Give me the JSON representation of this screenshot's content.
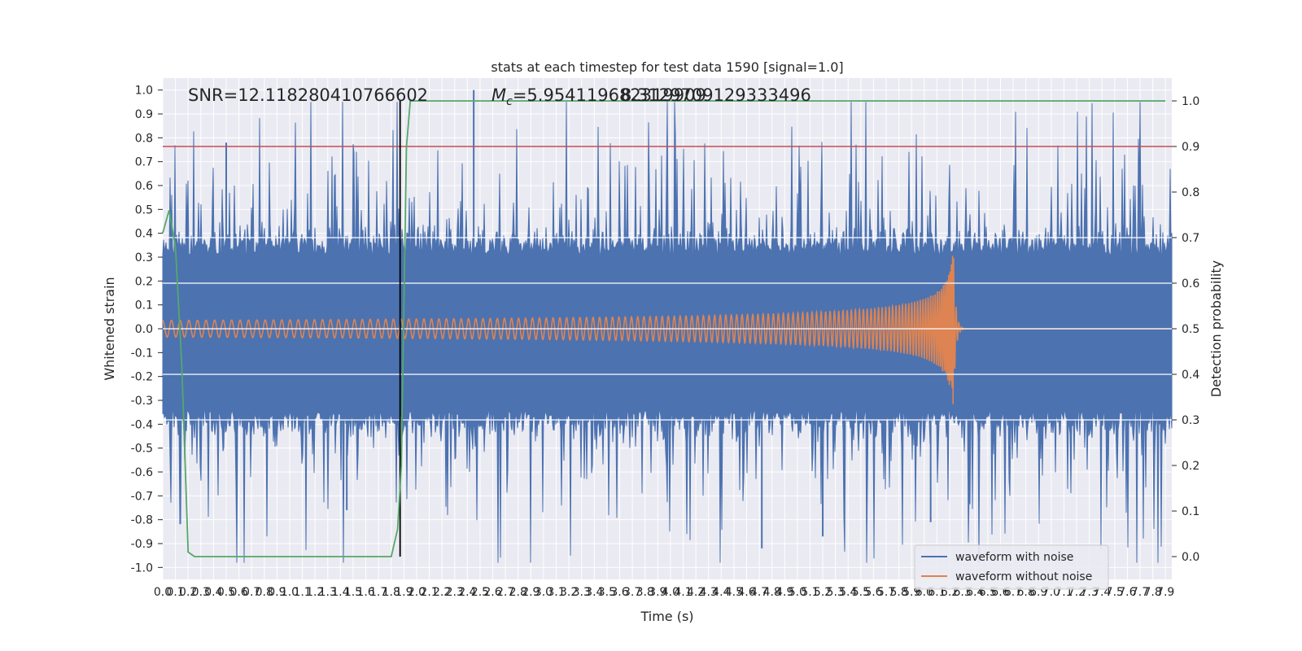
{
  "chart_data": {
    "type": "line",
    "title": "stats at each timestep for test data 1590 [signal=1.0]",
    "xlabel": "Time (s)",
    "ylabel_left": "Whitened strain",
    "ylabel_right": "Detection probability",
    "annotations": {
      "snr": "SNR=12.118280410766602",
      "mc_symbol": "M",
      "mc_subscript": "c",
      "mc_value": "=5.954119682319909",
      "overlap": "8.3129709129333496"
    },
    "xlim": [
      0.0,
      7.95
    ],
    "ylim_left": [
      -1.05,
      1.05
    ],
    "ylim_right": [
      -0.05,
      1.05
    ],
    "x_ticks": [
      "0.0",
      "0.1",
      "0.2",
      "0.3",
      "0.4",
      "0.5",
      "0.6",
      "0.7",
      "0.8",
      "0.9",
      "1.0",
      "1.1",
      "1.2",
      "1.3",
      "1.4",
      "1.5",
      "1.6",
      "1.7",
      "1.8",
      "1.9",
      "2.0",
      "2.1",
      "2.2",
      "2.3",
      "2.4",
      "2.5",
      "2.6",
      "2.7",
      "2.8",
      "2.9",
      "3.0",
      "3.1",
      "3.2",
      "3.3",
      "3.4",
      "3.5",
      "3.6",
      "3.7",
      "3.8",
      "3.9",
      "4.0",
      "4.1",
      "4.2",
      "4.3",
      "4.4",
      "4.5",
      "4.6",
      "4.7",
      "4.8",
      "4.9",
      "5.0",
      "5.1",
      "5.2",
      "5.3",
      "5.4",
      "5.5",
      "5.6",
      "5.7",
      "5.8",
      "5.9",
      "6.0",
      "6.1",
      "6.2",
      "6.3",
      "6.4",
      "6.5",
      "6.6",
      "6.7",
      "6.8",
      "6.9",
      "7.0",
      "7.1",
      "7.2",
      "7.3",
      "7.4",
      "7.5",
      "7.6",
      "7.7",
      "7.8",
      "7.9"
    ],
    "y_ticks_left": [
      "-1.0",
      "-0.9",
      "-0.8",
      "-0.7",
      "-0.6",
      "-0.5",
      "-0.4",
      "-0.3",
      "-0.2",
      "-0.1",
      "0.0",
      "0.1",
      "0.2",
      "0.3",
      "0.4",
      "0.5",
      "0.6",
      "0.7",
      "0.8",
      "0.9",
      "1.0"
    ],
    "y_ticks_right": [
      "0.0",
      "0.1",
      "0.2",
      "0.3",
      "0.4",
      "0.5",
      "0.6",
      "0.7",
      "0.8",
      "0.9",
      "1.0"
    ],
    "grid": true,
    "legend": {
      "placement": "lower-right"
    },
    "series": [
      {
        "name": "waveform with noise",
        "color": "#4c72b0",
        "axis": "left",
        "noise_band": [
          -0.34,
          0.31
        ],
        "notable_peaks": [
          [
            0.5,
            0.78
          ],
          [
            2.45,
            1.0
          ],
          [
            4.72,
            -0.92
          ],
          [
            5.2,
            -0.87
          ],
          [
            6.05,
            -0.81
          ],
          [
            1.45,
            -0.76
          ]
        ]
      },
      {
        "name": "waveform without noise",
        "color": "#dd8452",
        "axis": "left",
        "chirp": {
          "start": 0.0,
          "merger": 6.23,
          "end": 7.95,
          "amp_start": 0.035,
          "amp_merger": 0.32
        }
      },
      {
        "name": "detection probability",
        "color": "#55a868",
        "axis": "right",
        "x": [
          0.0,
          0.05,
          0.1,
          0.15,
          0.2,
          0.25,
          0.3,
          0.5,
          1.0,
          1.5,
          1.6,
          1.7,
          1.8,
          1.85,
          1.88,
          1.92,
          1.95,
          2.0,
          7.9
        ],
        "y": [
          0.71,
          0.76,
          0.68,
          0.42,
          0.01,
          0.0,
          0.0,
          0.0,
          0.0,
          0.0,
          0.0,
          0.0,
          0.0,
          0.06,
          0.2,
          0.9,
          1.0,
          1.0,
          1.0
        ]
      }
    ],
    "threshold_line": {
      "axis": "right",
      "value": 0.9,
      "color": "#c44e52"
    },
    "vertical_line": {
      "x": 1.87,
      "color": "#000000"
    },
    "right_axis_grid": [
      0.3,
      0.4,
      0.5,
      0.6,
      0.7
    ]
  }
}
